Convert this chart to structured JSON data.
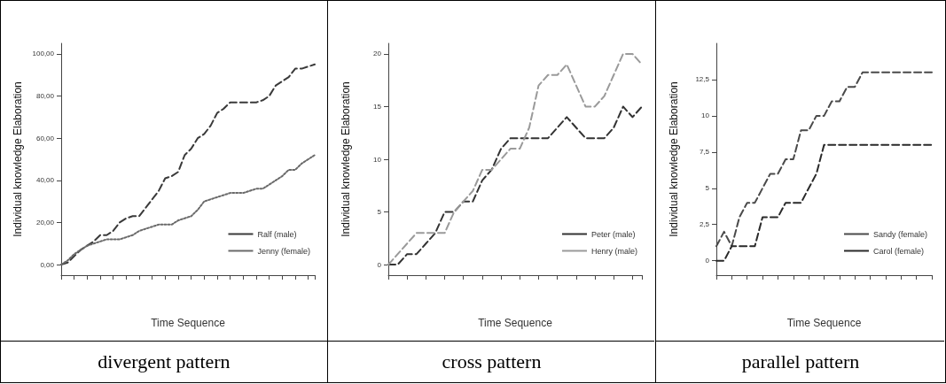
{
  "chart_data": [
    {
      "type": "line",
      "xlabel": "Time Sequence",
      "ylabel": "Individual knowledge Elaboration",
      "annotations": [
        "divergent pattern"
      ],
      "categories": [
        null,
        null,
        null,
        null,
        null,
        null,
        null,
        null,
        null,
        null,
        null,
        null,
        null,
        null,
        null,
        null,
        null,
        null,
        null,
        null,
        null,
        null,
        null,
        null,
        null,
        null,
        null,
        null,
        null,
        null,
        null,
        null,
        null,
        null,
        null,
        null,
        null,
        null,
        null,
        null
      ],
      "series": [
        {
          "name": "Ralf (male)",
          "color": "#3a3a3a",
          "line_style": "dashed",
          "values": [
            0,
            1,
            4,
            7,
            9,
            11,
            14,
            14,
            16,
            20,
            22,
            23,
            23,
            27,
            31,
            35,
            41,
            42,
            44,
            52,
            55,
            60,
            62,
            66,
            72,
            74,
            77,
            77,
            77,
            77,
            77,
            78,
            80,
            85,
            87,
            89,
            93,
            93,
            94,
            95
          ]
        },
        {
          "name": "Jenny (female)",
          "color": "#6a6a6a",
          "line_style": "dotted",
          "values": [
            0,
            2,
            5,
            7,
            9,
            10,
            11,
            12,
            12,
            12,
            13,
            14,
            16,
            17,
            18,
            19,
            19,
            19,
            21,
            22,
            23,
            26,
            30,
            31,
            32,
            33,
            34,
            34,
            34,
            35,
            36,
            36,
            38,
            40,
            42,
            45,
            45,
            48,
            50,
            52
          ]
        }
      ],
      "ylim": [
        -5,
        105
      ],
      "yticks": [
        {
          "value": 0,
          "label": "0,00"
        },
        {
          "value": 20,
          "label": "20,00"
        },
        {
          "value": 40,
          "label": "40,00"
        },
        {
          "value": 60,
          "label": "60,00"
        },
        {
          "value": 80,
          "label": "80,00"
        },
        {
          "value": 100,
          "label": "100,00"
        }
      ],
      "legend": "bottom right",
      "grid": false
    },
    {
      "type": "line",
      "xlabel": "Time Sequence",
      "ylabel": "Individual knowledge Elaboration",
      "annotations": [
        "cross pattern"
      ],
      "categories": [
        null,
        null,
        null,
        null,
        null,
        null,
        null,
        null,
        null,
        null,
        null,
        null,
        null,
        null,
        null,
        null,
        null,
        null,
        null,
        null,
        null,
        null,
        null,
        null,
        null,
        null,
        null,
        null
      ],
      "series": [
        {
          "name": "Peter (male)",
          "color": "#333333",
          "line_style": "dashed",
          "values": [
            0,
            0,
            1,
            1,
            2,
            3,
            5,
            5,
            6,
            6,
            8,
            9,
            11,
            12,
            12,
            12,
            12,
            12,
            13,
            14,
            13,
            12,
            12,
            12,
            13,
            15,
            14,
            15
          ]
        },
        {
          "name": "Henry (male)",
          "color": "#9a9a9a",
          "line_style": "dashed",
          "values": [
            0,
            1,
            2,
            3,
            3,
            3,
            3,
            5,
            6,
            7,
            9,
            9,
            10,
            11,
            11,
            13,
            17,
            18,
            18,
            19,
            17,
            15,
            15,
            16,
            18,
            20,
            20,
            19
          ]
        }
      ],
      "ylim": [
        -1,
        21
      ],
      "yticks": [
        0,
        5,
        10,
        15,
        20
      ],
      "legend": "bottom right",
      "grid": false
    },
    {
      "type": "line",
      "xlabel": "Time Sequence",
      "ylabel": "Individual knowledge Elaboration",
      "annotations": [
        "parallel pattern"
      ],
      "categories": [
        null,
        null,
        null,
        null,
        null,
        null,
        null,
        null,
        null,
        null,
        null,
        null,
        null,
        null,
        null,
        null,
        null,
        null,
        null,
        null,
        null,
        null,
        null,
        null,
        null,
        null,
        null,
        null,
        null
      ],
      "series": [
        {
          "name": "Sandy (female)",
          "color": "#4a4a4a",
          "line_style": "dashed",
          "values": [
            1,
            2,
            1,
            3,
            4,
            4,
            5,
            6,
            6,
            7,
            7,
            9,
            9,
            10,
            10,
            11,
            11,
            12,
            12,
            13,
            13,
            13,
            13,
            13,
            13,
            13,
            13,
            13,
            13
          ]
        },
        {
          "name": "Carol (female)",
          "color": "#2a2a2a",
          "line_style": "dashed",
          "values": [
            0,
            0,
            1,
            1,
            1,
            1,
            3,
            3,
            3,
            4,
            4,
            4,
            5,
            6,
            8,
            8,
            8,
            8,
            8,
            8,
            8,
            8,
            8,
            8,
            8,
            8,
            8,
            8,
            8
          ]
        }
      ],
      "ylim": [
        -1,
        15
      ],
      "yticks": [
        0,
        {
          "value": 2.5,
          "label": "2,5"
        },
        5,
        {
          "value": 7.5,
          "label": "7,5"
        },
        10,
        {
          "value": 12.5,
          "label": "12,5"
        }
      ],
      "legend": "bottom right",
      "grid": false
    }
  ]
}
